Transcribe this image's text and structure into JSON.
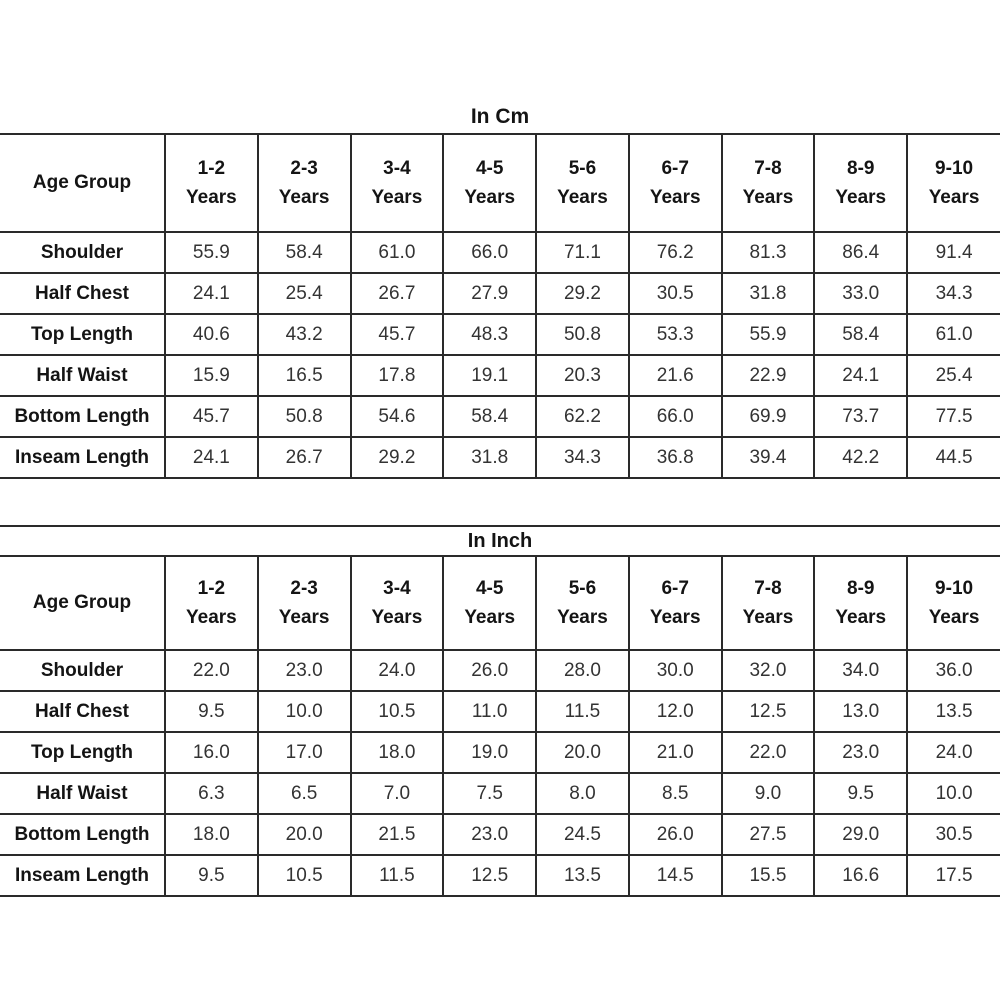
{
  "page": {
    "background_color": "#ffffff",
    "border_color": "#2a2a2a",
    "label_color": "#141414",
    "value_color": "#333333"
  },
  "chart_data": [
    {
      "type": "table",
      "title": "In Cm",
      "title_inside_table": false,
      "corner_label": "Age Group",
      "columns": [
        {
          "top": "1-2",
          "bottom": "Years"
        },
        {
          "top": "2-3",
          "bottom": "Years"
        },
        {
          "top": "3-4",
          "bottom": "Years"
        },
        {
          "top": "4-5",
          "bottom": "Years"
        },
        {
          "top": "5-6",
          "bottom": "Years"
        },
        {
          "top": "6-7",
          "bottom": "Years"
        },
        {
          "top": "7-8",
          "bottom": "Years"
        },
        {
          "top": "8-9",
          "bottom": "Years"
        },
        {
          "top": "9-10",
          "bottom": "Years"
        }
      ],
      "rows": [
        {
          "label": "Shoulder",
          "values": [
            "55.9",
            "58.4",
            "61.0",
            "66.0",
            "71.1",
            "76.2",
            "81.3",
            "86.4",
            "91.4"
          ]
        },
        {
          "label": "Half Chest",
          "values": [
            "24.1",
            "25.4",
            "26.7",
            "27.9",
            "29.2",
            "30.5",
            "31.8",
            "33.0",
            "34.3"
          ]
        },
        {
          "label": "Top Length",
          "values": [
            "40.6",
            "43.2",
            "45.7",
            "48.3",
            "50.8",
            "53.3",
            "55.9",
            "58.4",
            "61.0"
          ]
        },
        {
          "label": "Half Waist",
          "values": [
            "15.9",
            "16.5",
            "17.8",
            "19.1",
            "20.3",
            "21.6",
            "22.9",
            "24.1",
            "25.4"
          ]
        },
        {
          "label": "Bottom Length",
          "values": [
            "45.7",
            "50.8",
            "54.6",
            "58.4",
            "62.2",
            "66.0",
            "69.9",
            "73.7",
            "77.5"
          ]
        },
        {
          "label": "Inseam Length",
          "values": [
            "24.1",
            "26.7",
            "29.2",
            "31.8",
            "34.3",
            "36.8",
            "39.4",
            "42.2",
            "44.5"
          ]
        }
      ]
    },
    {
      "type": "table",
      "title": "In Inch",
      "title_inside_table": true,
      "corner_label": "Age Group",
      "columns": [
        {
          "top": "1-2",
          "bottom": "Years"
        },
        {
          "top": "2-3",
          "bottom": "Years"
        },
        {
          "top": "3-4",
          "bottom": "Years"
        },
        {
          "top": "4-5",
          "bottom": "Years"
        },
        {
          "top": "5-6",
          "bottom": "Years"
        },
        {
          "top": "6-7",
          "bottom": "Years"
        },
        {
          "top": "7-8",
          "bottom": "Years"
        },
        {
          "top": "8-9",
          "bottom": "Years"
        },
        {
          "top": "9-10",
          "bottom": "Years"
        }
      ],
      "rows": [
        {
          "label": "Shoulder",
          "values": [
            "22.0",
            "23.0",
            "24.0",
            "26.0",
            "28.0",
            "30.0",
            "32.0",
            "34.0",
            "36.0"
          ]
        },
        {
          "label": "Half Chest",
          "values": [
            "9.5",
            "10.0",
            "10.5",
            "11.0",
            "11.5",
            "12.0",
            "12.5",
            "13.0",
            "13.5"
          ]
        },
        {
          "label": "Top Length",
          "values": [
            "16.0",
            "17.0",
            "18.0",
            "19.0",
            "20.0",
            "21.0",
            "22.0",
            "23.0",
            "24.0"
          ]
        },
        {
          "label": "Half Waist",
          "values": [
            "6.3",
            "6.5",
            "7.0",
            "7.5",
            "8.0",
            "8.5",
            "9.0",
            "9.5",
            "10.0"
          ]
        },
        {
          "label": "Bottom Length",
          "values": [
            "18.0",
            "20.0",
            "21.5",
            "23.0",
            "24.5",
            "26.0",
            "27.5",
            "29.0",
            "30.5"
          ]
        },
        {
          "label": "Inseam Length",
          "values": [
            "9.5",
            "10.5",
            "11.5",
            "12.5",
            "13.5",
            "14.5",
            "15.5",
            "16.6",
            "17.5"
          ]
        }
      ]
    }
  ]
}
